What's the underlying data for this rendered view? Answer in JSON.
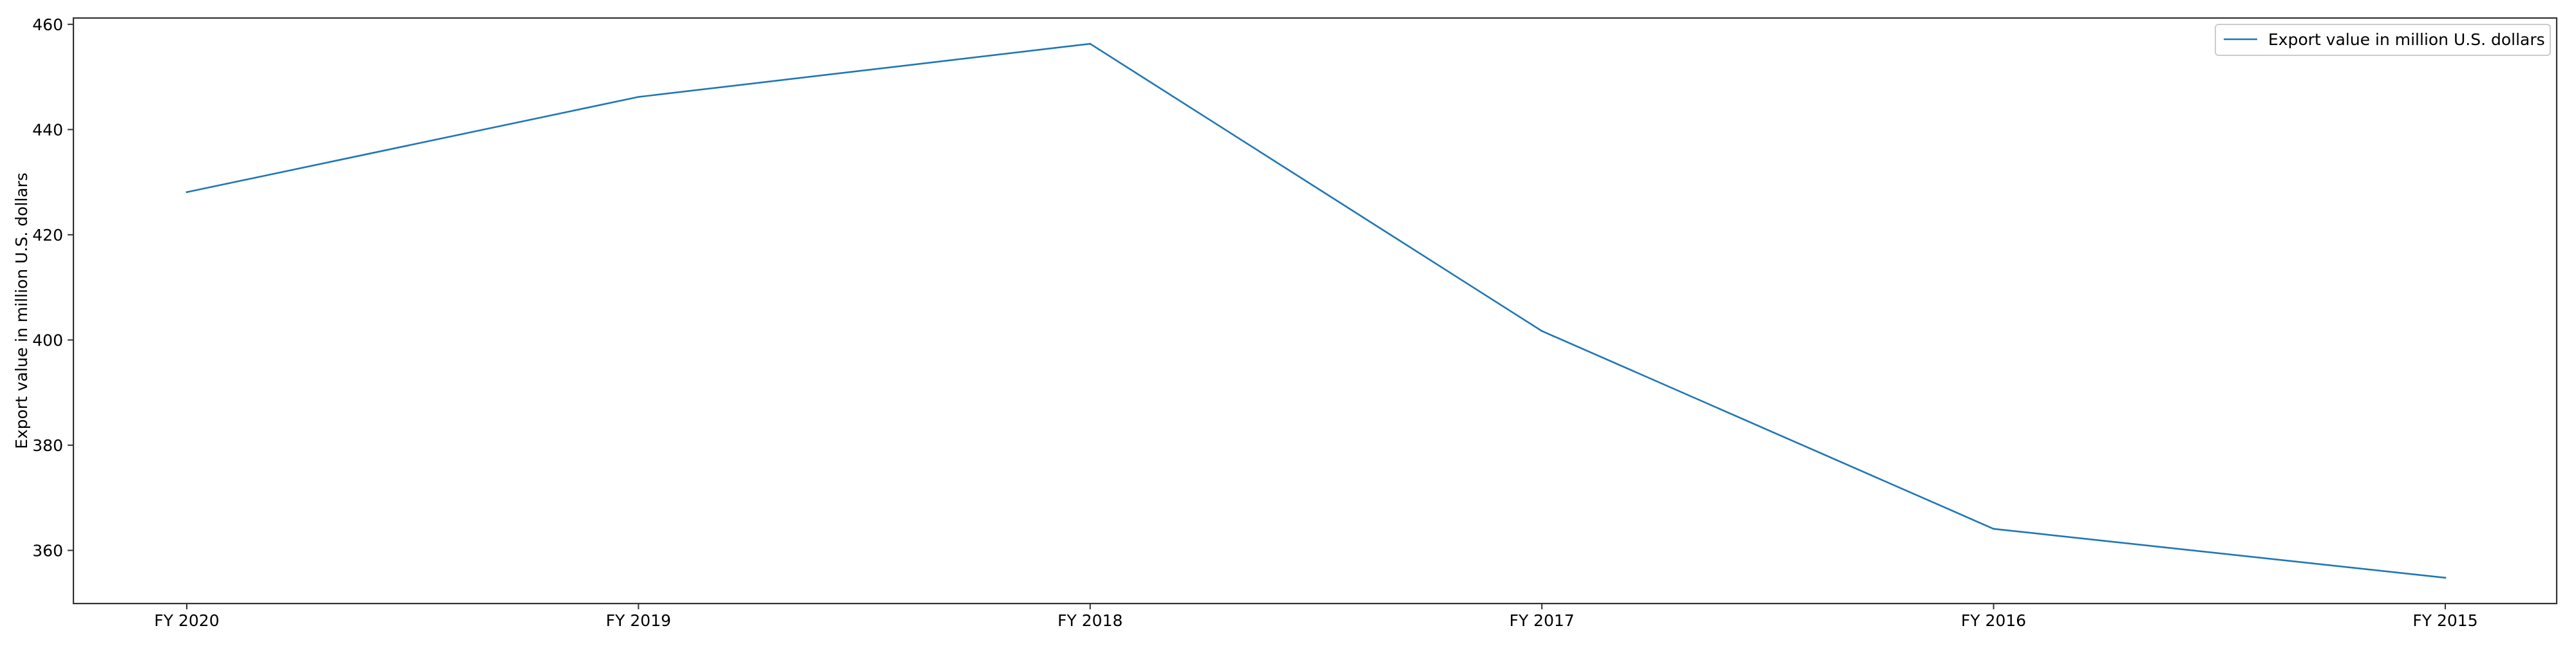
{
  "chart_data": {
    "type": "line",
    "title": "",
    "xlabel": "",
    "ylabel": "Export value in million U.S. dollars",
    "categories": [
      "FY 2020",
      "FY 2019",
      "FY 2018",
      "FY 2017",
      "FY 2016",
      "FY 2015"
    ],
    "series": [
      {
        "name": "Export value in million U.S. dollars",
        "color": "#1f77b4",
        "values": [
          428.1,
          446.2,
          456.3,
          401.7,
          364.1,
          354.8
        ]
      }
    ],
    "ylim": [
      349.9,
      461.2
    ],
    "yticks": [
      360,
      380,
      400,
      420,
      440,
      460
    ],
    "grid": false,
    "legend_position": "top-right"
  }
}
